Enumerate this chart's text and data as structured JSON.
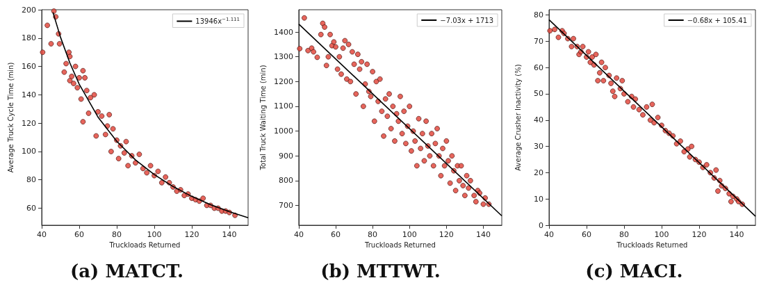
{
  "chart_data": [
    {
      "type": "scatter",
      "title": "(a) MATCT.",
      "xlabel": "Truckloads Returned",
      "ylabel": "Average Truck Cycle Time (min)",
      "xlim": [
        40,
        150
      ],
      "xticks": [
        40,
        60,
        80,
        100,
        120,
        140
      ],
      "ylim": [
        48,
        200
      ],
      "yticks": [
        60,
        80,
        100,
        120,
        140,
        160,
        180,
        200
      ],
      "grid": false,
      "legend": "top right",
      "marker": "circle",
      "series": [
        {
          "color": "#e34a3f",
          "x": [
            40.5,
            43,
            45,
            46.5,
            47.5,
            49,
            49.5,
            52,
            53,
            54.5,
            55,
            55,
            56,
            57,
            58,
            59,
            60,
            61,
            62,
            62,
            63,
            64,
            65,
            66,
            68,
            69,
            70,
            72,
            74,
            75,
            76,
            77,
            78,
            80,
            81,
            82,
            84,
            85,
            86,
            88,
            90,
            92,
            94,
            96,
            98,
            100,
            102,
            104,
            106,
            108,
            110,
            112,
            114,
            116,
            118,
            120,
            122,
            124,
            126,
            128,
            130,
            132,
            134,
            136,
            138,
            140,
            143
          ],
          "values": [
            170,
            189,
            176,
            199,
            195,
            183,
            176,
            156,
            162,
            170,
            167,
            150,
            153,
            148,
            160,
            145,
            152,
            137,
            157,
            121,
            152,
            143,
            127,
            138,
            140,
            111,
            128,
            125,
            112,
            118,
            126,
            100,
            116,
            108,
            95,
            104,
            99,
            107,
            90,
            97,
            92,
            98,
            88,
            85,
            90,
            83,
            86,
            78,
            82,
            78,
            75,
            72,
            73,
            69,
            70,
            67,
            66,
            65,
            67,
            62,
            62,
            60,
            60,
            58,
            58,
            57,
            55
          ]
        },
        {
          "type": "line",
          "name": "13946x$^{−1.111}$",
          "color": "#000000",
          "marker": "none",
          "line_style": "solid",
          "x": [
            46,
            50,
            55,
            60,
            70,
            80,
            90,
            100,
            110,
            120,
            130,
            140,
            150
          ],
          "values": [
            198.2,
            180.7,
            162.5,
            147.5,
            124.3,
            107.2,
            94.0,
            83.7,
            75.3,
            68.3,
            62.5,
            57.6,
            53.3
          ]
        }
      ]
    },
    {
      "type": "scatter",
      "title": "(b) MTTWT.",
      "xlabel": "Truckloads Returned",
      "ylabel": "Total Truck Waiting Time (min)",
      "xlim": [
        40,
        150
      ],
      "xticks": [
        40,
        60,
        80,
        100,
        120,
        140
      ],
      "ylim": [
        620,
        1490
      ],
      "yticks": [
        700,
        800,
        900,
        1000,
        1100,
        1200,
        1300,
        1400
      ],
      "grid": false,
      "legend": "top right",
      "marker": "circle",
      "series": [
        {
          "color": "#e34a3f",
          "x": [
            40.5,
            43,
            45,
            47,
            48,
            50,
            52,
            53,
            54,
            55,
            56,
            57,
            58,
            59,
            60,
            61,
            62,
            63,
            64,
            65,
            66,
            67,
            68,
            69,
            70,
            71,
            72,
            73,
            74,
            75,
            76,
            77,
            78,
            79,
            80,
            81,
            82,
            83,
            84,
            85,
            86,
            87,
            88,
            89,
            90,
            91,
            92,
            93,
            94,
            95,
            96,
            97,
            98,
            99,
            100,
            101,
            102,
            103,
            104,
            105,
            106,
            107,
            108,
            109,
            110,
            111,
            112,
            113,
            114,
            115,
            116,
            117,
            118,
            119,
            120,
            121,
            122,
            123,
            124,
            125,
            126,
            127,
            128,
            129,
            130,
            131,
            132,
            133,
            135,
            136,
            137,
            138,
            140,
            141,
            143
          ],
          "values": [
            1333,
            1457,
            1325,
            1335,
            1320,
            1298,
            1390,
            1435,
            1420,
            1265,
            1300,
            1390,
            1345,
            1360,
            1340,
            1250,
            1300,
            1230,
            1335,
            1365,
            1210,
            1350,
            1200,
            1320,
            1270,
            1150,
            1310,
            1250,
            1280,
            1100,
            1190,
            1270,
            1160,
            1140,
            1240,
            1040,
            1200,
            1120,
            1210,
            1080,
            980,
            1130,
            1060,
            1150,
            1010,
            1100,
            960,
            1070,
            1040,
            1140,
            990,
            1080,
            950,
            1020,
            1100,
            920,
            1000,
            960,
            860,
            1050,
            930,
            990,
            880,
            1040,
            940,
            900,
            990,
            860,
            950,
            1010,
            900,
            820,
            930,
            860,
            960,
            880,
            790,
            900,
            840,
            760,
            860,
            800,
            860,
            780,
            740,
            820,
            770,
            800,
            740,
            715,
            760,
            750,
            705,
            730,
            705
          ]
        },
        {
          "type": "line",
          "name": "−7.03x + 1713",
          "color": "#000000",
          "marker": "none",
          "line_style": "solid",
          "x": [
            40,
            150
          ],
          "values": [
            1432,
            658
          ]
        }
      ]
    },
    {
      "type": "scatter",
      "title": "(c) MACI.",
      "xlabel": "Truckloads Returned",
      "ylabel": "Average Crusher Inactivity (%)",
      "xlim": [
        40,
        150
      ],
      "xticks": [
        40,
        60,
        80,
        100,
        120,
        140
      ],
      "ylim": [
        0,
        82
      ],
      "yticks": [
        0,
        10,
        20,
        30,
        40,
        50,
        60,
        70,
        80
      ],
      "grid": false,
      "legend": "top right",
      "marker": "circle",
      "series": [
        {
          "color": "#e34a3f",
          "x": [
            40.5,
            43,
            45,
            47,
            48,
            50,
            52,
            53,
            55,
            56,
            57,
            58,
            60,
            61,
            62,
            63,
            64,
            65,
            66,
            67,
            68,
            69,
            70,
            72,
            73,
            74,
            75,
            76,
            78,
            79,
            80,
            82,
            84,
            85,
            86,
            88,
            90,
            92,
            94,
            95,
            96,
            98,
            100,
            102,
            104,
            106,
            108,
            110,
            112,
            114,
            115,
            116,
            118,
            120,
            122,
            124,
            126,
            128,
            129,
            130,
            131,
            132,
            134,
            136,
            137,
            138,
            140,
            141,
            143
          ],
          "values": [
            74,
            74.5,
            71.5,
            74,
            73,
            71,
            68,
            71,
            68,
            65,
            66,
            68,
            64,
            66,
            62,
            64,
            61,
            65,
            55,
            58,
            62,
            55,
            60,
            57,
            54,
            51,
            49,
            56,
            52,
            55,
            50,
            47,
            49,
            45,
            48,
            44,
            42,
            45,
            40,
            46,
            39,
            41,
            38,
            36,
            35,
            34,
            31,
            32,
            28,
            29,
            26,
            30,
            25,
            24,
            22,
            23,
            20,
            18,
            21,
            13,
            17,
            15,
            14,
            12,
            9,
            11,
            10,
            9,
            8
          ]
        },
        {
          "type": "line",
          "name": "−0.68x + 105.41",
          "color": "#000000",
          "marker": "none",
          "line_style": "solid",
          "x": [
            40,
            150
          ],
          "values": [
            78.2,
            3.4
          ]
        }
      ]
    }
  ]
}
